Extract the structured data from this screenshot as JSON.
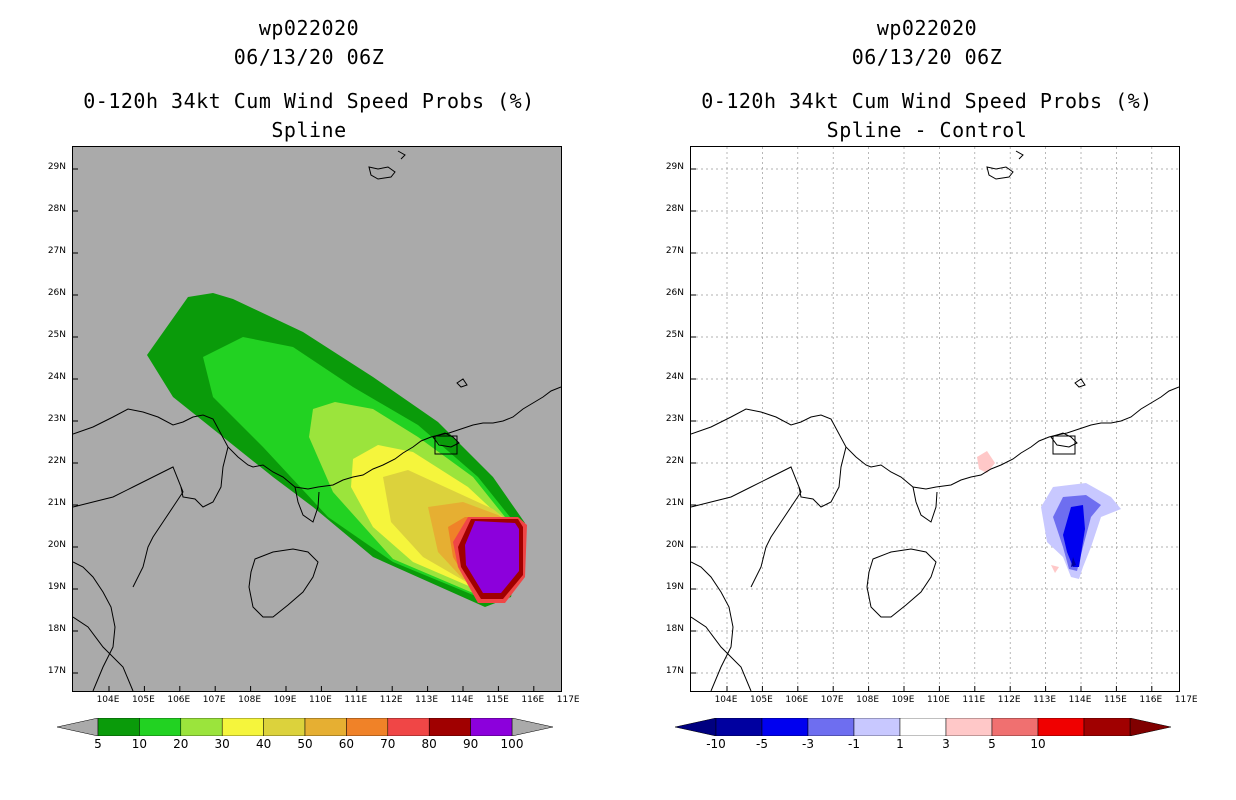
{
  "left": {
    "header": "wp022020",
    "date": "06/13/20 06Z",
    "title": "0-120h 34kt Cum Wind Speed Probs (%)",
    "subtitle": "Spline",
    "background": "#aaaaaa",
    "colorbar": {
      "colors": [
        "#0a9b0a",
        "#22d222",
        "#9be43c",
        "#f5f53c",
        "#dcd23c",
        "#e6af32",
        "#f08228",
        "#f04646",
        "#a00000",
        "#8c00dc"
      ],
      "labels": [
        "5",
        "10",
        "20",
        "30",
        "40",
        "50",
        "60",
        "70",
        "80",
        "90",
        "100"
      ]
    }
  },
  "right": {
    "header": "wp022020",
    "date": "06/13/20 06Z",
    "title": "0-120h 34kt Cum Wind Speed Probs (%)",
    "subtitle": "Spline - Control",
    "background": "#ffffff",
    "colorbar": {
      "colors": [
        "#0000a0",
        "#0000f0",
        "#6e6ef0",
        "#c8c8ff",
        "#ffffff",
        "#ffc8c8",
        "#f07070",
        "#f00000",
        "#a00000"
      ],
      "labels": [
        "-10",
        "-5",
        "-3",
        "-1",
        "1",
        "3",
        "5",
        "10"
      ]
    }
  },
  "axes": {
    "lat_labels": [
      "29N",
      "28N",
      "27N",
      "26N",
      "25N",
      "24N",
      "23N",
      "22N",
      "21N",
      "20N",
      "19N",
      "18N",
      "17N"
    ],
    "lon_labels": [
      "104E",
      "105E",
      "106E",
      "107E",
      "108E",
      "109E",
      "110E",
      "111E",
      "112E",
      "113E",
      "114E",
      "115E",
      "116E",
      "117E"
    ]
  }
}
